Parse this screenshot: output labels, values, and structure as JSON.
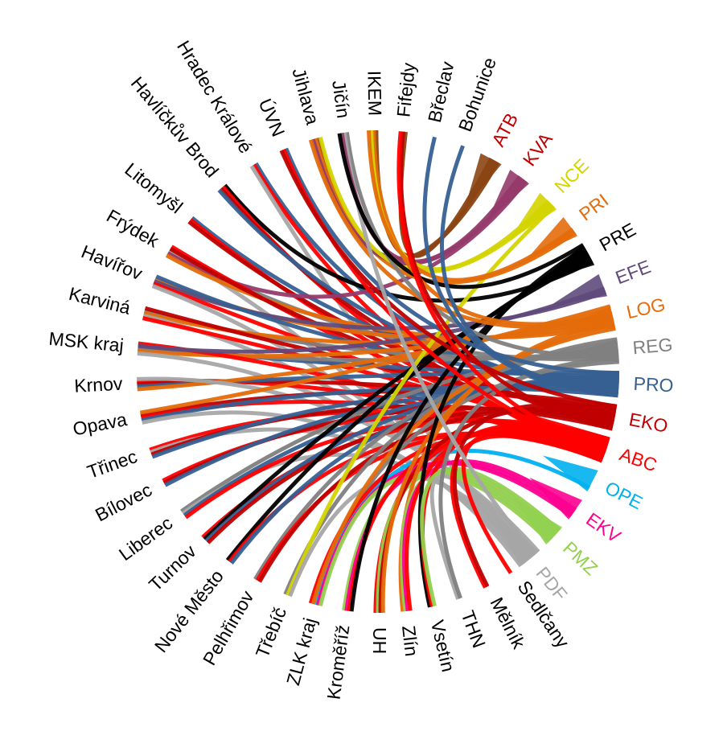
{
  "chart_data": {
    "type": "chord",
    "title": "",
    "left_nodes": [
      {
        "name": "Hradec Králové"
      },
      {
        "name": "Havlíčkův Brod"
      },
      {
        "name": "Litomyšl"
      },
      {
        "name": "Frýdek"
      },
      {
        "name": "Havířov"
      },
      {
        "name": "Karviná"
      },
      {
        "name": "MSK kraj"
      },
      {
        "name": "Krnov"
      },
      {
        "name": "Opava"
      },
      {
        "name": "Třinec"
      },
      {
        "name": "Bílovec"
      },
      {
        "name": "Liberec"
      },
      {
        "name": "Turnov"
      },
      {
        "name": "Nové Město"
      },
      {
        "name": "Pelhřimov"
      },
      {
        "name": "Třebíč"
      },
      {
        "name": "ZLK kraj"
      },
      {
        "name": "Kroměříž"
      },
      {
        "name": "UH"
      },
      {
        "name": "Zlín"
      },
      {
        "name": "Vsetín"
      },
      {
        "name": "THN"
      },
      {
        "name": "Mělník"
      },
      {
        "name": "Sedlčany"
      },
      {
        "name": "ÚVN"
      },
      {
        "name": "Jihlava"
      },
      {
        "name": "Jičín"
      },
      {
        "name": "IKEM"
      },
      {
        "name": "Fifejdy"
      },
      {
        "name": "Břeclav"
      },
      {
        "name": "Bohunice"
      }
    ],
    "right_nodes": [
      {
        "name": "ATB",
        "color": "#c00000"
      },
      {
        "name": "KVA",
        "color": "#c00000"
      },
      {
        "name": "NCE",
        "color": "#d4d400"
      },
      {
        "name": "PRI",
        "color": "#e46c0a"
      },
      {
        "name": "PRE",
        "color": "#000000"
      },
      {
        "name": "EFE",
        "color": "#604a7b"
      },
      {
        "name": "LOG",
        "color": "#e46c0a"
      },
      {
        "name": "REG",
        "color": "#808080"
      },
      {
        "name": "PRO",
        "color": "#366092"
      },
      {
        "name": "EKO",
        "color": "#c00000"
      },
      {
        "name": "ABC",
        "color": "#ff0000"
      },
      {
        "name": "OPE",
        "color": "#00b0f0"
      },
      {
        "name": "EKV",
        "color": "#ff0090"
      },
      {
        "name": "PMZ",
        "color": "#92d050"
      },
      {
        "name": "PDF",
        "color": "#a6a6a6"
      }
    ],
    "ribbon_colors": {
      "ATB": "#8b4513",
      "KVA": "#953a6a",
      "NCE": "#d4d400",
      "PRI": "#e46c0a",
      "PRE": "#000000",
      "EFE": "#604a7b",
      "LOG": "#e46c0a",
      "REG": "#808080",
      "PRO": "#366092",
      "EKO": "#c00000",
      "ABC": "#ff0000",
      "OPE": "#00b0f0",
      "EKV": "#ff0090",
      "PMZ": "#92d050",
      "PDF": "#a6a6a6"
    },
    "links": [
      [
        "Hradec Králové",
        "PRO"
      ],
      [
        "Hradec Králové",
        "ABC"
      ],
      [
        "Hradec Králové",
        "PDF"
      ],
      [
        "Havlíčkův Brod",
        "PRE"
      ],
      [
        "Havlíčkův Brod",
        "ABC"
      ],
      [
        "Havlíčkův Brod",
        "EKO"
      ],
      [
        "Havlíčkův Brod",
        "PRO"
      ],
      [
        "Litomyšl",
        "PRO"
      ],
      [
        "Litomyšl",
        "ABC"
      ],
      [
        "Litomyšl",
        "EKO"
      ],
      [
        "Frýdek",
        "REG"
      ],
      [
        "Frýdek",
        "PDF"
      ],
      [
        "Frýdek",
        "KVA"
      ],
      [
        "Frýdek",
        "LOG"
      ],
      [
        "Frýdek",
        "ABC"
      ],
      [
        "Frýdek",
        "EKO"
      ],
      [
        "Havířov",
        "LOG"
      ],
      [
        "Havířov",
        "EFE"
      ],
      [
        "Havířov",
        "ABC"
      ],
      [
        "Havířov",
        "PDF"
      ],
      [
        "Havířov",
        "PRO"
      ],
      [
        "Karviná",
        "REG"
      ],
      [
        "Karviná",
        "LOG"
      ],
      [
        "Karviná",
        "PDF"
      ],
      [
        "Karviná",
        "ABC"
      ],
      [
        "Karviná",
        "EKO"
      ],
      [
        "MSK kraj",
        "PRO"
      ],
      [
        "MSK kraj",
        "REG"
      ],
      [
        "MSK kraj",
        "LOG"
      ],
      [
        "MSK kraj",
        "PDF"
      ],
      [
        "MSK kraj",
        "ABC"
      ],
      [
        "MSK kraj",
        "EFE"
      ],
      [
        "Krnov",
        "ABC"
      ],
      [
        "Krnov",
        "EKO"
      ],
      [
        "Krnov",
        "PRO"
      ],
      [
        "Krnov",
        "LOG"
      ],
      [
        "Krnov",
        "PDF"
      ],
      [
        "Opava",
        "EKO"
      ],
      [
        "Opava",
        "ABC"
      ],
      [
        "Opava",
        "PRO"
      ],
      [
        "Opava",
        "PDF"
      ],
      [
        "Opava",
        "LOG"
      ],
      [
        "Třinec",
        "ABC"
      ],
      [
        "Třinec",
        "PDF"
      ],
      [
        "Třinec",
        "EKO"
      ],
      [
        "Třinec",
        "PRO"
      ],
      [
        "Bílovec",
        "ABC"
      ],
      [
        "Bílovec",
        "EKO"
      ],
      [
        "Bílovec",
        "PRO"
      ],
      [
        "Liberec",
        "REG"
      ],
      [
        "Liberec",
        "PDF"
      ],
      [
        "Liberec",
        "PRO"
      ],
      [
        "Liberec",
        "ABC"
      ],
      [
        "Turnov",
        "ABC"
      ],
      [
        "Turnov",
        "PRE"
      ],
      [
        "Turnov",
        "PRO"
      ],
      [
        "Turnov",
        "EKO"
      ],
      [
        "Nové Město",
        "PRE"
      ],
      [
        "Nové Město",
        "ABC"
      ],
      [
        "Nové Město",
        "PRO"
      ],
      [
        "Pelhřimov",
        "REG"
      ],
      [
        "Pelhřimov",
        "ABC"
      ],
      [
        "Pelhřimov",
        "EKO"
      ],
      [
        "Třebíč",
        "REG"
      ],
      [
        "Třebíč",
        "NCE"
      ],
      [
        "Třebíč",
        "PDF"
      ],
      [
        "ZLK kraj",
        "REG"
      ],
      [
        "ZLK kraj",
        "OPE"
      ],
      [
        "ZLK kraj",
        "EKV"
      ],
      [
        "ZLK kraj",
        "PMZ"
      ],
      [
        "ZLK kraj",
        "ABC"
      ],
      [
        "ZLK kraj",
        "LOG"
      ],
      [
        "Kroměříž",
        "PMZ"
      ],
      [
        "Kroměříž",
        "EKV"
      ],
      [
        "Kroměříž",
        "ABC"
      ],
      [
        "Kroměříž",
        "PRE"
      ],
      [
        "UH",
        "ABC"
      ],
      [
        "UH",
        "PMZ"
      ],
      [
        "UH",
        "EKO"
      ],
      [
        "UH",
        "LOG"
      ],
      [
        "Zlín",
        "LOG"
      ],
      [
        "Zlín",
        "PMZ"
      ],
      [
        "Zlín",
        "EKV"
      ],
      [
        "Zlín",
        "ABC"
      ],
      [
        "Vsetín",
        "PRE"
      ],
      [
        "Vsetín",
        "ABC"
      ],
      [
        "Vsetín",
        "PMZ"
      ],
      [
        "THN",
        "PDF"
      ],
      [
        "THN",
        "REG"
      ],
      [
        "Mělník",
        "ABC"
      ],
      [
        "Mělník",
        "EKO"
      ],
      [
        "Sedlčany",
        "ABC"
      ],
      [
        "ÚVN",
        "PRO"
      ],
      [
        "ÚVN",
        "ABC"
      ],
      [
        "ÚVN",
        "EKO"
      ],
      [
        "Jihlava",
        "ATB"
      ],
      [
        "Jihlava",
        "PRI"
      ],
      [
        "Jihlava",
        "KVA"
      ],
      [
        "Jihlava",
        "LOG"
      ],
      [
        "Jihlava",
        "NCE"
      ],
      [
        "Jičín",
        "REG"
      ],
      [
        "Jičín",
        "PDF"
      ],
      [
        "Jičín",
        "KVA"
      ],
      [
        "Jičín",
        "PRE"
      ],
      [
        "IKEM",
        "ATB"
      ],
      [
        "IKEM",
        "LOG"
      ],
      [
        "IKEM",
        "NCE"
      ],
      [
        "IKEM",
        "PRI"
      ],
      [
        "Fifejdy",
        "ATB"
      ],
      [
        "Fifejdy",
        "EKO"
      ],
      [
        "Fifejdy",
        "ABC"
      ],
      [
        "Břeclav",
        "PRO"
      ],
      [
        "Bohunice",
        "PRO"
      ]
    ]
  }
}
